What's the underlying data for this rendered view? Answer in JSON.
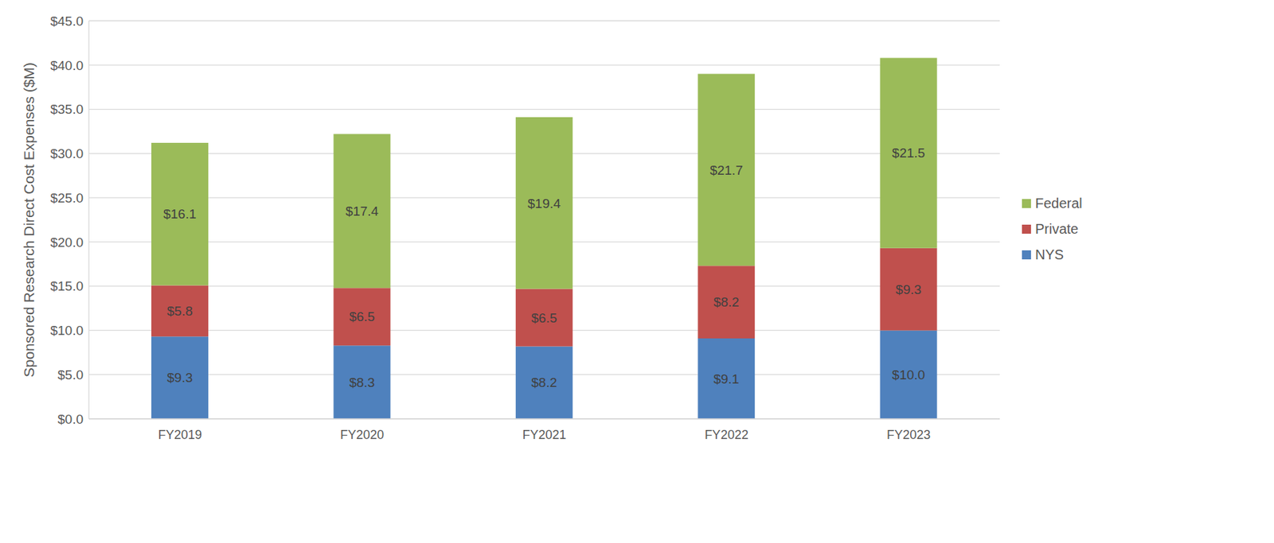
{
  "chart_data": {
    "type": "bar",
    "stacked": true,
    "data_labels": true,
    "grid": true,
    "legend": "right",
    "y_label": "Sponsored Research Direct Cost Expenses ($M)",
    "categories": [
      "FY2019",
      "FY2020",
      "FY2021",
      "FY2022",
      "FY2023"
    ],
    "series": [
      {
        "name": "NYS",
        "color": "#4f81bd",
        "values": [
          9.3,
          8.3,
          8.2,
          9.1,
          10.0
        ],
        "value_labels": [
          "$9.3",
          "$8.3",
          "$8.2",
          "$9.1",
          "$10.0"
        ]
      },
      {
        "name": "Private",
        "color": "#c0504d",
        "values": [
          5.8,
          6.5,
          6.5,
          8.2,
          9.3
        ],
        "value_labels": [
          "$5.8",
          "$6.5",
          "$6.5",
          "$8.2",
          "$9.3"
        ]
      },
      {
        "name": "Federal",
        "color": "#9bbb59",
        "values": [
          16.1,
          17.4,
          19.4,
          21.7,
          21.5
        ],
        "value_labels": [
          "$16.1",
          "$17.4",
          "$19.4",
          "$21.7",
          "$21.5"
        ]
      }
    ],
    "ylim": [
      0,
      45
    ],
    "yticks": [
      {
        "value": 0,
        "label": "$0.0"
      },
      {
        "value": 5,
        "label": "$5.0"
      },
      {
        "value": 10,
        "label": "$10.0"
      },
      {
        "value": 15,
        "label": "$15.0"
      },
      {
        "value": 20,
        "label": "$20.0"
      },
      {
        "value": 25,
        "label": "$25.0"
      },
      {
        "value": 30,
        "label": "$30.0"
      },
      {
        "value": 35,
        "label": "$35.0"
      },
      {
        "value": 40,
        "label": "$40.0"
      },
      {
        "value": 45,
        "label": "$45.0"
      }
    ]
  }
}
